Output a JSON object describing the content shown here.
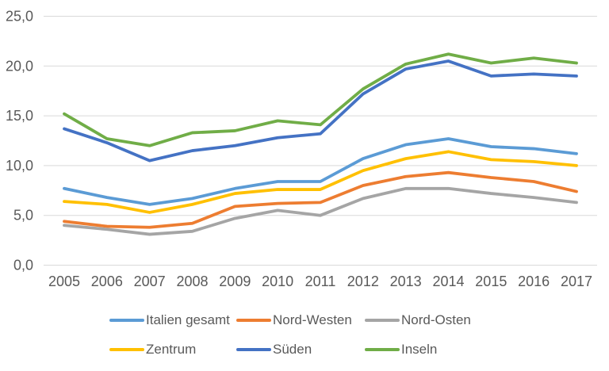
{
  "page": {
    "background": "#ffffff",
    "axis_text_color": "#595959",
    "gridline_color": "#d9d9d9"
  },
  "chart_data": {
    "type": "line",
    "title": "",
    "xlabel": "",
    "ylabel": "",
    "categories": [
      "2005",
      "2006",
      "2007",
      "2008",
      "2009",
      "2010",
      "2011",
      "2012",
      "2013",
      "2014",
      "2015",
      "2016",
      "2017"
    ],
    "series": [
      {
        "name": "Italien gesamt",
        "color": "#5B9BD5",
        "values": [
          7.7,
          6.8,
          6.1,
          6.7,
          7.7,
          8.4,
          8.4,
          10.7,
          12.1,
          12.7,
          11.9,
          11.7,
          11.2
        ]
      },
      {
        "name": "Nord-Westen",
        "color": "#ED7D31",
        "values": [
          4.4,
          3.9,
          3.8,
          4.2,
          5.9,
          6.2,
          6.3,
          8.0,
          8.9,
          9.3,
          8.8,
          8.4,
          7.4
        ]
      },
      {
        "name": "Nord-Osten",
        "color": "#A5A5A5",
        "values": [
          4.0,
          3.6,
          3.1,
          3.4,
          4.7,
          5.5,
          5.0,
          6.7,
          7.7,
          7.7,
          7.2,
          6.8,
          6.3
        ]
      },
      {
        "name": "Zentrum",
        "color": "#FFC000",
        "values": [
          6.4,
          6.1,
          5.3,
          6.1,
          7.2,
          7.6,
          7.6,
          9.5,
          10.7,
          11.4,
          10.6,
          10.4,
          10.0
        ]
      },
      {
        "name": "Süden",
        "color": "#4472C4",
        "values": [
          13.7,
          12.3,
          10.5,
          11.5,
          12.0,
          12.8,
          13.2,
          17.2,
          19.7,
          20.5,
          19.0,
          19.2,
          19.0
        ]
      },
      {
        "name": "Inseln",
        "color": "#70AD47",
        "values": [
          15.2,
          12.7,
          12.0,
          13.3,
          13.5,
          14.5,
          14.1,
          17.7,
          20.2,
          21.2,
          20.3,
          20.8,
          20.3
        ]
      }
    ],
    "ylim": [
      0,
      25
    ],
    "y_tick_values": [
      0,
      5,
      10,
      15,
      20,
      25
    ],
    "y_tick_labels": [
      "0,0",
      "5,0",
      "10,0",
      "15,0",
      "20,0",
      "25,0"
    ],
    "decimal_separator": ",",
    "grid": true,
    "legend_position": "bottom",
    "legend_rows": [
      [
        "Italien gesamt",
        "Nord-Westen",
        "Nord-Osten"
      ],
      [
        "Zentrum",
        "Süden",
        "Inseln"
      ]
    ]
  }
}
